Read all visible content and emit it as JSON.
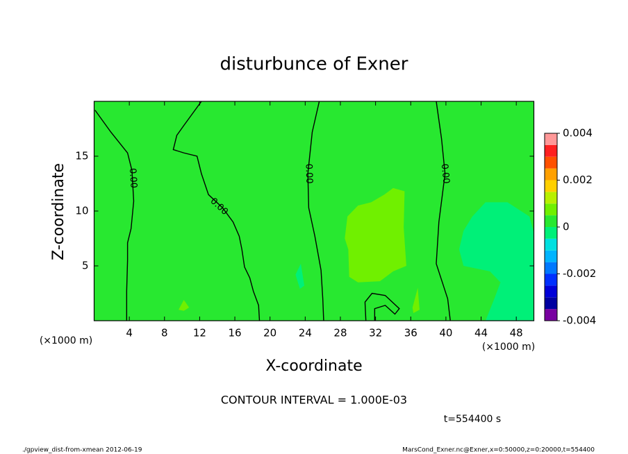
{
  "chart_data": {
    "type": "contour",
    "title": "disturbunce of Exner",
    "xlabel": "X-coordinate",
    "ylabel": "Z-coordinate",
    "x_unit": "(×1000 m)",
    "y_unit": "(×1000 m)",
    "xlim": [
      0,
      50
    ],
    "xticks": [
      4,
      8,
      12,
      16,
      20,
      24,
      28,
      32,
      36,
      40,
      44,
      48
    ],
    "ylim": [
      0,
      20
    ],
    "yticks": [
      5,
      10,
      15
    ],
    "levels": [
      -0.004,
      -0.0035,
      -0.003,
      -0.0025,
      -0.002,
      -0.0015,
      -0.001,
      -0.0005,
      0,
      0.0005,
      0.001,
      0.0015,
      0.002,
      0.0025,
      0.003,
      0.0035,
      0.004
    ],
    "colors": [
      "#7800a0",
      "#0000a0",
      "#0000d8",
      "#0030ff",
      "#0078ff",
      "#00b4ff",
      "#00e0e0",
      "#00f078",
      "#28e830",
      "#70f000",
      "#b8f000",
      "#ffd000",
      "#ffa000",
      "#ff5000",
      "#ff2020",
      "#ff9898"
    ],
    "colorbar_ticks": [
      -0.004,
      -0.002,
      0,
      0.002,
      0.004
    ],
    "background_level": 0,
    "regions": [
      {
        "level": 0.0005,
        "x": [
          28.8,
          30,
          31.5,
          33,
          34,
          35.3,
          35.2,
          35.5,
          34,
          32.5,
          30,
          29,
          28.9,
          28.5
        ],
        "y": [
          9.5,
          10.5,
          10.8,
          11.5,
          12.1,
          11.8,
          8.5,
          5,
          4.5,
          3.6,
          3.5,
          4,
          6.5,
          7.5
        ]
      },
      {
        "level": 0.0005,
        "x": [
          9.6,
          10.2,
          10.8,
          10.2
        ],
        "y": [
          1,
          1.9,
          1.2,
          0.9
        ]
      },
      {
        "level": 0.0005,
        "x": [
          36.2,
          36.8,
          37,
          36.3
        ],
        "y": [
          1.2,
          3,
          1,
          0.7
        ]
      },
      {
        "level": -0.0005,
        "x": [
          44.5,
          47,
          49.5,
          50,
          50,
          44.5,
          45.5,
          46.2,
          45,
          42,
          41.5,
          42,
          43
        ],
        "y": [
          10.8,
          10.8,
          9.5,
          8,
          0,
          0,
          2,
          3.5,
          4.5,
          5,
          6.5,
          8.2,
          9.5
        ]
      },
      {
        "level": -0.0005,
        "x": [
          22.9,
          23.5,
          23.9,
          23.4
        ],
        "y": [
          4.2,
          5.2,
          3.2,
          2.9
        ]
      }
    ],
    "contours": [
      {
        "level": 0,
        "label": "0.00",
        "label_x": 4.4,
        "label_y": 13,
        "x": [
          0.1,
          1.9,
          3.8,
          4.3,
          4.5,
          4.2,
          3.8,
          3.8,
          3.7,
          3.7
        ],
        "y": [
          19.2,
          17.2,
          15.3,
          13.7,
          10.9,
          8.4,
          7.1,
          5.5,
          2.7,
          0
        ]
      },
      {
        "level": 0,
        "label": "0.00",
        "label_x": 14.2,
        "label_y": 10.4,
        "x": [
          12.2,
          10.2,
          9.4,
          9.0,
          10.2,
          11.7,
          12.2,
          13.0,
          14.6,
          15.8,
          16.5,
          16.8,
          17.1,
          17.7,
          18.1,
          18.7,
          18.8
        ],
        "y": [
          20,
          17.8,
          16.9,
          15.6,
          15.3,
          15.0,
          13.4,
          11.5,
          10.3,
          9.0,
          7.7,
          6.5,
          4.9,
          3.9,
          2.7,
          1.4,
          0
        ]
      },
      {
        "level": 0,
        "label": "0.00",
        "label_x": 24.4,
        "label_y": 13.4,
        "x": [
          25.6,
          24.8,
          24.3,
          24.4,
          25.1,
          25.8,
          26.0,
          26.1
        ],
        "y": [
          20,
          17.2,
          13.4,
          10.3,
          7.7,
          4.6,
          2.0,
          0
        ]
      },
      {
        "level": 0,
        "label": "0.00",
        "label_x": 39.9,
        "label_y": 13.4,
        "x": [
          38.9,
          39.5,
          39.9,
          39.2,
          38.9,
          40.2,
          40.5
        ],
        "y": [
          20,
          16.6,
          13.4,
          9.0,
          5.2,
          2.0,
          0
        ]
      },
      {
        "level": 0,
        "x": [
          30.9,
          30.8,
          31.6,
          33.1,
          34.7,
          34.2,
          33.1,
          31.9,
          31.9
        ],
        "y": [
          0,
          1.7,
          2.5,
          2.3,
          1.1,
          0.6,
          1.4,
          1.1,
          0
        ]
      }
    ],
    "contour_interval": "CONTOUR INTERVAL = 1.000E-03",
    "time": "t=554400 s",
    "footer_left": "./gpview_dist-from-xmean  2012-06-19",
    "footer_right": "MarsCond_Exner.nc@Exner,x=0:50000,z=0:20000,t=554400"
  }
}
